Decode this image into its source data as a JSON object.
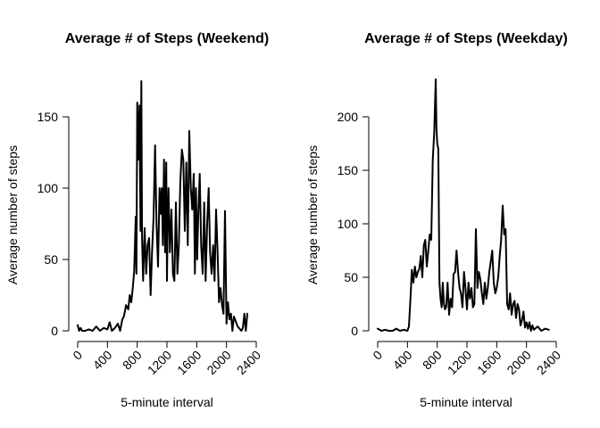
{
  "chart_data": [
    {
      "type": "line",
      "title": "Average # of Steps (Weekend)",
      "xlabel": "5-minute interval",
      "ylabel": "Average number of steps",
      "xlim": [
        0,
        2400
      ],
      "ylim": [
        0,
        175
      ],
      "xticks": [
        "0",
        "400",
        "800",
        "1200",
        "1600",
        "2000",
        "2400"
      ],
      "yticks": [
        "0",
        "50",
        "100",
        "150"
      ],
      "series": [
        {
          "color": "#000000",
          "x": [
            0,
            20,
            40,
            60,
            100,
            150,
            200,
            250,
            300,
            350,
            400,
            430,
            460,
            500,
            540,
            570,
            600,
            620,
            650,
            680,
            700,
            720,
            740,
            760,
            780,
            790,
            800,
            815,
            830,
            845,
            855,
            865,
            880,
            900,
            920,
            940,
            960,
            980,
            1000,
            1020,
            1040,
            1060,
            1080,
            1100,
            1115,
            1130,
            1145,
            1160,
            1175,
            1190,
            1200,
            1210,
            1220,
            1240,
            1260,
            1280,
            1300,
            1320,
            1340,
            1360,
            1380,
            1400,
            1420,
            1440,
            1460,
            1480,
            1500,
            1520,
            1540,
            1560,
            1575,
            1590,
            1605,
            1620,
            1640,
            1660,
            1680,
            1700,
            1720,
            1740,
            1760,
            1780,
            1800,
            1820,
            1840,
            1860,
            1880,
            1900,
            1920,
            1940,
            1960,
            1980,
            2000,
            2020,
            2040,
            2060,
            2080,
            2100,
            2150,
            2200,
            2220,
            2240,
            2260,
            2280
          ],
          "y": [
            4,
            0,
            2,
            0,
            0,
            1,
            0,
            3,
            0,
            2,
            1,
            6,
            0,
            2,
            5,
            0,
            8,
            10,
            18,
            15,
            25,
            20,
            30,
            42,
            80,
            40,
            160,
            120,
            158,
            70,
            175,
            65,
            35,
            72,
            40,
            60,
            65,
            25,
            55,
            80,
            130,
            75,
            45,
            100,
            82,
            100,
            60,
            120,
            55,
            118,
            35,
            75,
            100,
            55,
            85,
            40,
            35,
            90,
            40,
            60,
            105,
            127,
            120,
            70,
            118,
            60,
            140,
            100,
            85,
            110,
            40,
            100,
            50,
            80,
            110,
            60,
            40,
            90,
            35,
            75,
            100,
            55,
            40,
            60,
            35,
            85,
            55,
            20,
            30,
            18,
            12,
            84,
            5,
            20,
            8,
            12,
            0,
            10,
            3,
            0,
            2,
            12,
            0,
            12
          ]
        }
      ]
    },
    {
      "type": "line",
      "title": "Average # of Steps (Weekday)",
      "xlabel": "5-minute interval",
      "ylabel": "Average number of steps",
      "xlim": [
        0,
        2400
      ],
      "ylim": [
        0,
        235
      ],
      "xticks": [
        "0",
        "400",
        "800",
        "1200",
        "1600",
        "2000",
        "2400"
      ],
      "yticks": [
        "0",
        "50",
        "100",
        "150",
        "200"
      ],
      "series": [
        {
          "color": "#000000",
          "x": [
            0,
            50,
            100,
            150,
            200,
            250,
            300,
            350,
            400,
            420,
            440,
            460,
            480,
            500,
            520,
            540,
            560,
            580,
            600,
            620,
            640,
            660,
            680,
            700,
            720,
            740,
            760,
            780,
            790,
            800,
            815,
            830,
            845,
            860,
            875,
            890,
            905,
            920,
            940,
            960,
            980,
            1000,
            1020,
            1040,
            1060,
            1080,
            1100,
            1120,
            1140,
            1160,
            1180,
            1200,
            1220,
            1240,
            1260,
            1280,
            1300,
            1320,
            1340,
            1360,
            1380,
            1400,
            1420,
            1440,
            1460,
            1480,
            1500,
            1520,
            1540,
            1560,
            1580,
            1600,
            1620,
            1640,
            1660,
            1680,
            1700,
            1720,
            1740,
            1760,
            1780,
            1800,
            1820,
            1840,
            1860,
            1880,
            1900,
            1920,
            1940,
            1960,
            1980,
            2000,
            2020,
            2040,
            2060,
            2080,
            2100,
            2150,
            2200,
            2250,
            2300
          ],
          "y": [
            2,
            0,
            1,
            0,
            0,
            2,
            0,
            1,
            0,
            4,
            30,
            57,
            45,
            60,
            50,
            55,
            58,
            70,
            50,
            80,
            85,
            60,
            75,
            90,
            85,
            160,
            185,
            235,
            190,
            175,
            170,
            45,
            30,
            22,
            45,
            25,
            20,
            22,
            45,
            15,
            30,
            22,
            53,
            55,
            75,
            55,
            40,
            35,
            22,
            55,
            40,
            20,
            45,
            30,
            40,
            22,
            25,
            95,
            40,
            55,
            48,
            35,
            25,
            45,
            30,
            40,
            55,
            65,
            75,
            45,
            35,
            40,
            50,
            70,
            85,
            117,
            90,
            95,
            25,
            20,
            35,
            15,
            25,
            28,
            12,
            25,
            20,
            5,
            10,
            18,
            3,
            8,
            2,
            8,
            0,
            5,
            1,
            4,
            0,
            2,
            1
          ]
        }
      ]
    }
  ]
}
